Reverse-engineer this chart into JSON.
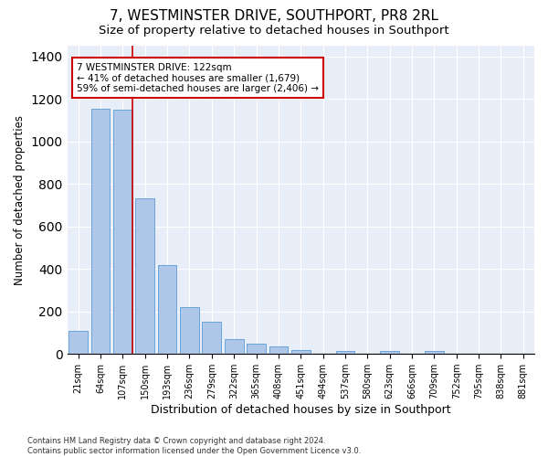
{
  "title": "7, WESTMINSTER DRIVE, SOUTHPORT, PR8 2RL",
  "subtitle": "Size of property relative to detached houses in Southport",
  "xlabel": "Distribution of detached houses by size in Southport",
  "ylabel": "Number of detached properties",
  "categories": [
    "21sqm",
    "64sqm",
    "107sqm",
    "150sqm",
    "193sqm",
    "236sqm",
    "279sqm",
    "322sqm",
    "365sqm",
    "408sqm",
    "451sqm",
    "494sqm",
    "537sqm",
    "580sqm",
    "623sqm",
    "666sqm",
    "709sqm",
    "752sqm",
    "795sqm",
    "838sqm",
    "881sqm"
  ],
  "bar_heights": [
    110,
    1155,
    1150,
    730,
    420,
    220,
    150,
    70,
    50,
    35,
    20,
    0,
    15,
    0,
    15,
    0,
    12,
    0,
    0,
    0,
    0
  ],
  "bar_color": "#aec6e8",
  "bar_edge_color": "#5b9bd5",
  "vline_color": "#cc0000",
  "annotation_text": "7 WESTMINSTER DRIVE: 122sqm\n← 41% of detached houses are smaller (1,679)\n59% of semi-detached houses are larger (2,406) →",
  "background_color": "#e8eef8",
  "grid_color": "#ffffff",
  "footer": "Contains HM Land Registry data © Crown copyright and database right 2024.\nContains public sector information licensed under the Open Government Licence v3.0.",
  "ylim": [
    0,
    1450
  ],
  "title_fontsize": 11,
  "subtitle_fontsize": 9.5,
  "ylabel_fontsize": 8.5,
  "xlabel_fontsize": 9,
  "tick_fontsize": 7,
  "footer_fontsize": 6
}
